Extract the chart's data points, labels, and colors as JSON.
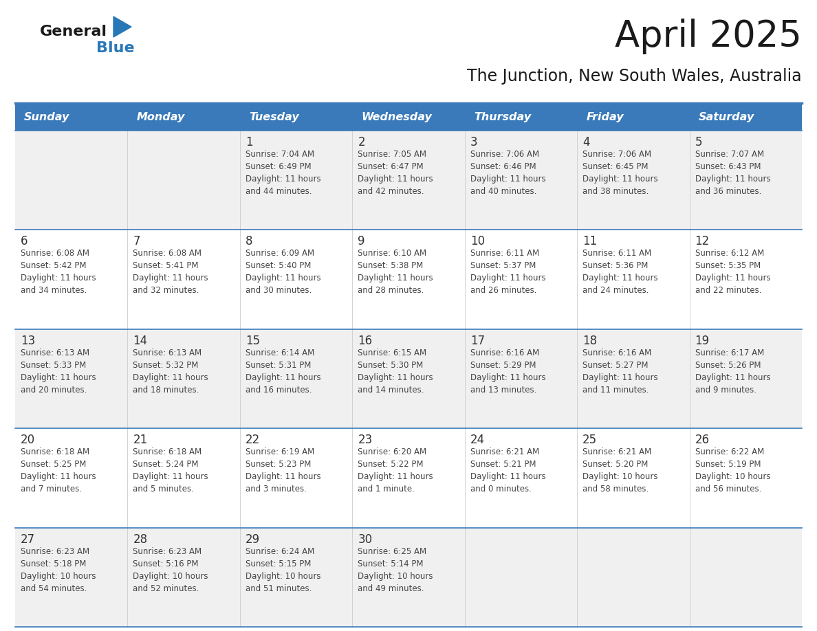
{
  "title": "April 2025",
  "subtitle": "The Junction, New South Wales, Australia",
  "header_bg_color": "#3a7aba",
  "header_text_color": "#ffffff",
  "weekdays": [
    "Sunday",
    "Monday",
    "Tuesday",
    "Wednesday",
    "Thursday",
    "Friday",
    "Saturday"
  ],
  "row_bg_even": "#f0f0f0",
  "row_bg_odd": "#ffffff",
  "border_color": "#3a7aba",
  "day_color": "#333333",
  "info_color": "#444444",
  "logo_general_color": "#1a1a1a",
  "logo_blue_color": "#2878b8",
  "calendar": [
    [
      {
        "day": "",
        "sunrise": "",
        "sunset": "",
        "daylight": ""
      },
      {
        "day": "",
        "sunrise": "",
        "sunset": "",
        "daylight": ""
      },
      {
        "day": "1",
        "sunrise": "Sunrise: 7:04 AM",
        "sunset": "Sunset: 6:49 PM",
        "daylight": "Daylight: 11 hours\nand 44 minutes."
      },
      {
        "day": "2",
        "sunrise": "Sunrise: 7:05 AM",
        "sunset": "Sunset: 6:47 PM",
        "daylight": "Daylight: 11 hours\nand 42 minutes."
      },
      {
        "day": "3",
        "sunrise": "Sunrise: 7:06 AM",
        "sunset": "Sunset: 6:46 PM",
        "daylight": "Daylight: 11 hours\nand 40 minutes."
      },
      {
        "day": "4",
        "sunrise": "Sunrise: 7:06 AM",
        "sunset": "Sunset: 6:45 PM",
        "daylight": "Daylight: 11 hours\nand 38 minutes."
      },
      {
        "day": "5",
        "sunrise": "Sunrise: 7:07 AM",
        "sunset": "Sunset: 6:43 PM",
        "daylight": "Daylight: 11 hours\nand 36 minutes."
      }
    ],
    [
      {
        "day": "6",
        "sunrise": "Sunrise: 6:08 AM",
        "sunset": "Sunset: 5:42 PM",
        "daylight": "Daylight: 11 hours\nand 34 minutes."
      },
      {
        "day": "7",
        "sunrise": "Sunrise: 6:08 AM",
        "sunset": "Sunset: 5:41 PM",
        "daylight": "Daylight: 11 hours\nand 32 minutes."
      },
      {
        "day": "8",
        "sunrise": "Sunrise: 6:09 AM",
        "sunset": "Sunset: 5:40 PM",
        "daylight": "Daylight: 11 hours\nand 30 minutes."
      },
      {
        "day": "9",
        "sunrise": "Sunrise: 6:10 AM",
        "sunset": "Sunset: 5:38 PM",
        "daylight": "Daylight: 11 hours\nand 28 minutes."
      },
      {
        "day": "10",
        "sunrise": "Sunrise: 6:11 AM",
        "sunset": "Sunset: 5:37 PM",
        "daylight": "Daylight: 11 hours\nand 26 minutes."
      },
      {
        "day": "11",
        "sunrise": "Sunrise: 6:11 AM",
        "sunset": "Sunset: 5:36 PM",
        "daylight": "Daylight: 11 hours\nand 24 minutes."
      },
      {
        "day": "12",
        "sunrise": "Sunrise: 6:12 AM",
        "sunset": "Sunset: 5:35 PM",
        "daylight": "Daylight: 11 hours\nand 22 minutes."
      }
    ],
    [
      {
        "day": "13",
        "sunrise": "Sunrise: 6:13 AM",
        "sunset": "Sunset: 5:33 PM",
        "daylight": "Daylight: 11 hours\nand 20 minutes."
      },
      {
        "day": "14",
        "sunrise": "Sunrise: 6:13 AM",
        "sunset": "Sunset: 5:32 PM",
        "daylight": "Daylight: 11 hours\nand 18 minutes."
      },
      {
        "day": "15",
        "sunrise": "Sunrise: 6:14 AM",
        "sunset": "Sunset: 5:31 PM",
        "daylight": "Daylight: 11 hours\nand 16 minutes."
      },
      {
        "day": "16",
        "sunrise": "Sunrise: 6:15 AM",
        "sunset": "Sunset: 5:30 PM",
        "daylight": "Daylight: 11 hours\nand 14 minutes."
      },
      {
        "day": "17",
        "sunrise": "Sunrise: 6:16 AM",
        "sunset": "Sunset: 5:29 PM",
        "daylight": "Daylight: 11 hours\nand 13 minutes."
      },
      {
        "day": "18",
        "sunrise": "Sunrise: 6:16 AM",
        "sunset": "Sunset: 5:27 PM",
        "daylight": "Daylight: 11 hours\nand 11 minutes."
      },
      {
        "day": "19",
        "sunrise": "Sunrise: 6:17 AM",
        "sunset": "Sunset: 5:26 PM",
        "daylight": "Daylight: 11 hours\nand 9 minutes."
      }
    ],
    [
      {
        "day": "20",
        "sunrise": "Sunrise: 6:18 AM",
        "sunset": "Sunset: 5:25 PM",
        "daylight": "Daylight: 11 hours\nand 7 minutes."
      },
      {
        "day": "21",
        "sunrise": "Sunrise: 6:18 AM",
        "sunset": "Sunset: 5:24 PM",
        "daylight": "Daylight: 11 hours\nand 5 minutes."
      },
      {
        "day": "22",
        "sunrise": "Sunrise: 6:19 AM",
        "sunset": "Sunset: 5:23 PM",
        "daylight": "Daylight: 11 hours\nand 3 minutes."
      },
      {
        "day": "23",
        "sunrise": "Sunrise: 6:20 AM",
        "sunset": "Sunset: 5:22 PM",
        "daylight": "Daylight: 11 hours\nand 1 minute."
      },
      {
        "day": "24",
        "sunrise": "Sunrise: 6:21 AM",
        "sunset": "Sunset: 5:21 PM",
        "daylight": "Daylight: 11 hours\nand 0 minutes."
      },
      {
        "day": "25",
        "sunrise": "Sunrise: 6:21 AM",
        "sunset": "Sunset: 5:20 PM",
        "daylight": "Daylight: 10 hours\nand 58 minutes."
      },
      {
        "day": "26",
        "sunrise": "Sunrise: 6:22 AM",
        "sunset": "Sunset: 5:19 PM",
        "daylight": "Daylight: 10 hours\nand 56 minutes."
      }
    ],
    [
      {
        "day": "27",
        "sunrise": "Sunrise: 6:23 AM",
        "sunset": "Sunset: 5:18 PM",
        "daylight": "Daylight: 10 hours\nand 54 minutes."
      },
      {
        "day": "28",
        "sunrise": "Sunrise: 6:23 AM",
        "sunset": "Sunset: 5:16 PM",
        "daylight": "Daylight: 10 hours\nand 52 minutes."
      },
      {
        "day": "29",
        "sunrise": "Sunrise: 6:24 AM",
        "sunset": "Sunset: 5:15 PM",
        "daylight": "Daylight: 10 hours\nand 51 minutes."
      },
      {
        "day": "30",
        "sunrise": "Sunrise: 6:25 AM",
        "sunset": "Sunset: 5:14 PM",
        "daylight": "Daylight: 10 hours\nand 49 minutes."
      },
      {
        "day": "",
        "sunrise": "",
        "sunset": "",
        "daylight": ""
      },
      {
        "day": "",
        "sunrise": "",
        "sunset": "",
        "daylight": ""
      },
      {
        "day": "",
        "sunrise": "",
        "sunset": "",
        "daylight": ""
      }
    ]
  ]
}
